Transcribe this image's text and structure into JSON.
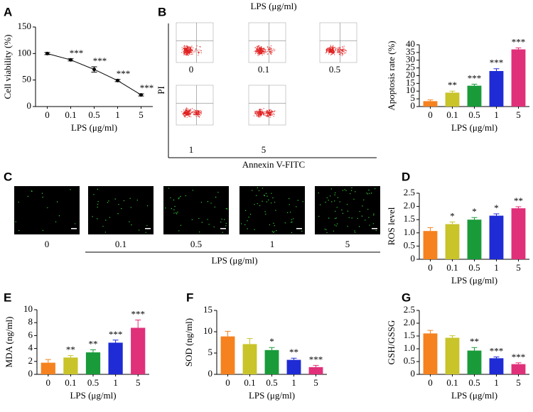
{
  "chart_data": [
    {
      "type": "line",
      "panel": "A",
      "y_label": "Cell viability (%)",
      "x_label": "LPS (μg/ml)",
      "categories": [
        "0",
        "0.1",
        "0.5",
        "1",
        "5"
      ],
      "values": [
        100,
        88,
        70,
        49,
        22
      ],
      "errors": [
        2,
        2,
        5,
        2,
        2
      ],
      "annotations": [
        null,
        "***",
        "***",
        "***",
        "***"
      ],
      "color": "#000000",
      "ylim": [
        0,
        150
      ],
      "yticks": [
        0,
        50,
        100,
        150
      ]
    },
    {
      "type": "bar",
      "y_label": "Apoptosis rate (%)",
      "x_label": "LPS (μg/ml)",
      "categories": [
        "0",
        "0.1",
        "0.5",
        "1",
        "5"
      ],
      "values": [
        3.5,
        9,
        13.5,
        23,
        37
      ],
      "errors": [
        0.8,
        1,
        1,
        1.5,
        1
      ],
      "annotations": [
        null,
        "**",
        "***",
        "***",
        "***"
      ],
      "colors": [
        "#f5821f",
        "#c8c42a",
        "#1a9b3a",
        "#1f2bd4",
        "#e0307a"
      ],
      "ylim": [
        0,
        40
      ],
      "yticks": [
        0,
        5,
        10,
        15,
        20,
        25,
        30,
        35,
        40
      ]
    },
    {
      "type": "bar",
      "panel": "D",
      "y_label": "ROS level",
      "x_label": "LPS (μg/ml)",
      "categories": [
        "0",
        "0.1",
        "0.5",
        "1",
        "5"
      ],
      "values": [
        1.07,
        1.33,
        1.5,
        1.65,
        1.93
      ],
      "errors": [
        0.13,
        0.08,
        0.08,
        0.07,
        0.06
      ],
      "annotations": [
        null,
        "*",
        "*",
        "*",
        "**"
      ],
      "colors": [
        "#f5821f",
        "#c8c42a",
        "#1a9b3a",
        "#1f2bd4",
        "#e0307a"
      ],
      "ylim": [
        0,
        2.5
      ],
      "yticks": [
        0,
        0.5,
        {
          "value": 1,
          "label": "1.0"
        },
        1.5,
        {
          "value": 2,
          "label": "2.0"
        },
        2.5
      ]
    },
    {
      "type": "bar",
      "panel": "E",
      "y_label": "MDA (ng/ml)",
      "x_label": "LPS (μg/ml)",
      "categories": [
        "0",
        "0.1",
        "0.5",
        "1",
        "5"
      ],
      "values": [
        1.8,
        2.6,
        3.4,
        4.9,
        7.2
      ],
      "errors": [
        0.5,
        0.3,
        0.4,
        0.4,
        1.2
      ],
      "annotations": [
        null,
        "**",
        "**",
        "***",
        "***"
      ],
      "colors": [
        "#f5821f",
        "#c8c42a",
        "#1a9b3a",
        "#1f2bd4",
        "#e0307a"
      ],
      "ylim": [
        0,
        10
      ],
      "yticks": [
        0,
        2,
        4,
        6,
        8,
        10
      ]
    },
    {
      "type": "bar",
      "panel": "F",
      "y_label": "SOD (ng/ml)",
      "x_label": "LPS (μg/ml)",
      "categories": [
        "0",
        "0.1",
        "0.5",
        "1",
        "5"
      ],
      "values": [
        8.9,
        7.1,
        5.7,
        3.4,
        1.7
      ],
      "errors": [
        1.2,
        1.3,
        0.6,
        0.4,
        0.4
      ],
      "annotations": [
        null,
        null,
        "*",
        "**",
        "***"
      ],
      "colors": [
        "#f5821f",
        "#c8c42a",
        "#1a9b3a",
        "#1f2bd4",
        "#e0307a"
      ],
      "ylim": [
        0,
        15
      ],
      "yticks": [
        0,
        5,
        10,
        15
      ]
    },
    {
      "type": "bar",
      "panel": "G",
      "y_label": "GSH/GSSG",
      "x_label": "LPS (μg/ml)",
      "categories": [
        "0",
        "0.1",
        "0.5",
        "1",
        "5"
      ],
      "values": [
        1.6,
        1.43,
        0.93,
        0.63,
        0.4
      ],
      "errors": [
        0.12,
        0.08,
        0.12,
        0.05,
        0.05
      ],
      "annotations": [
        null,
        null,
        "**",
        "***",
        "***"
      ],
      "colors": [
        "#f5821f",
        "#c8c42a",
        "#1a9b3a",
        "#1f2bd4",
        "#e0307a"
      ],
      "ylim": [
        0,
        2.5
      ],
      "yticks": [
        0,
        0.5,
        {
          "value": 1,
          "label": "1.0"
        },
        1.5,
        {
          "value": 2,
          "label": "2.0"
        },
        2.5
      ]
    }
  ],
  "flow": {
    "panel": "B",
    "title": "LPS (μg/ml)",
    "y_label": "PI",
    "x_label": "Annexin V-FITC",
    "labels": [
      "0",
      "0.1",
      "0.5",
      "1",
      "5"
    ]
  },
  "microscopy": {
    "panel": "C",
    "labels": [
      "0",
      "0.1",
      "0.5",
      "1",
      "5"
    ],
    "axis_label": "LPS (μg/ml)"
  }
}
